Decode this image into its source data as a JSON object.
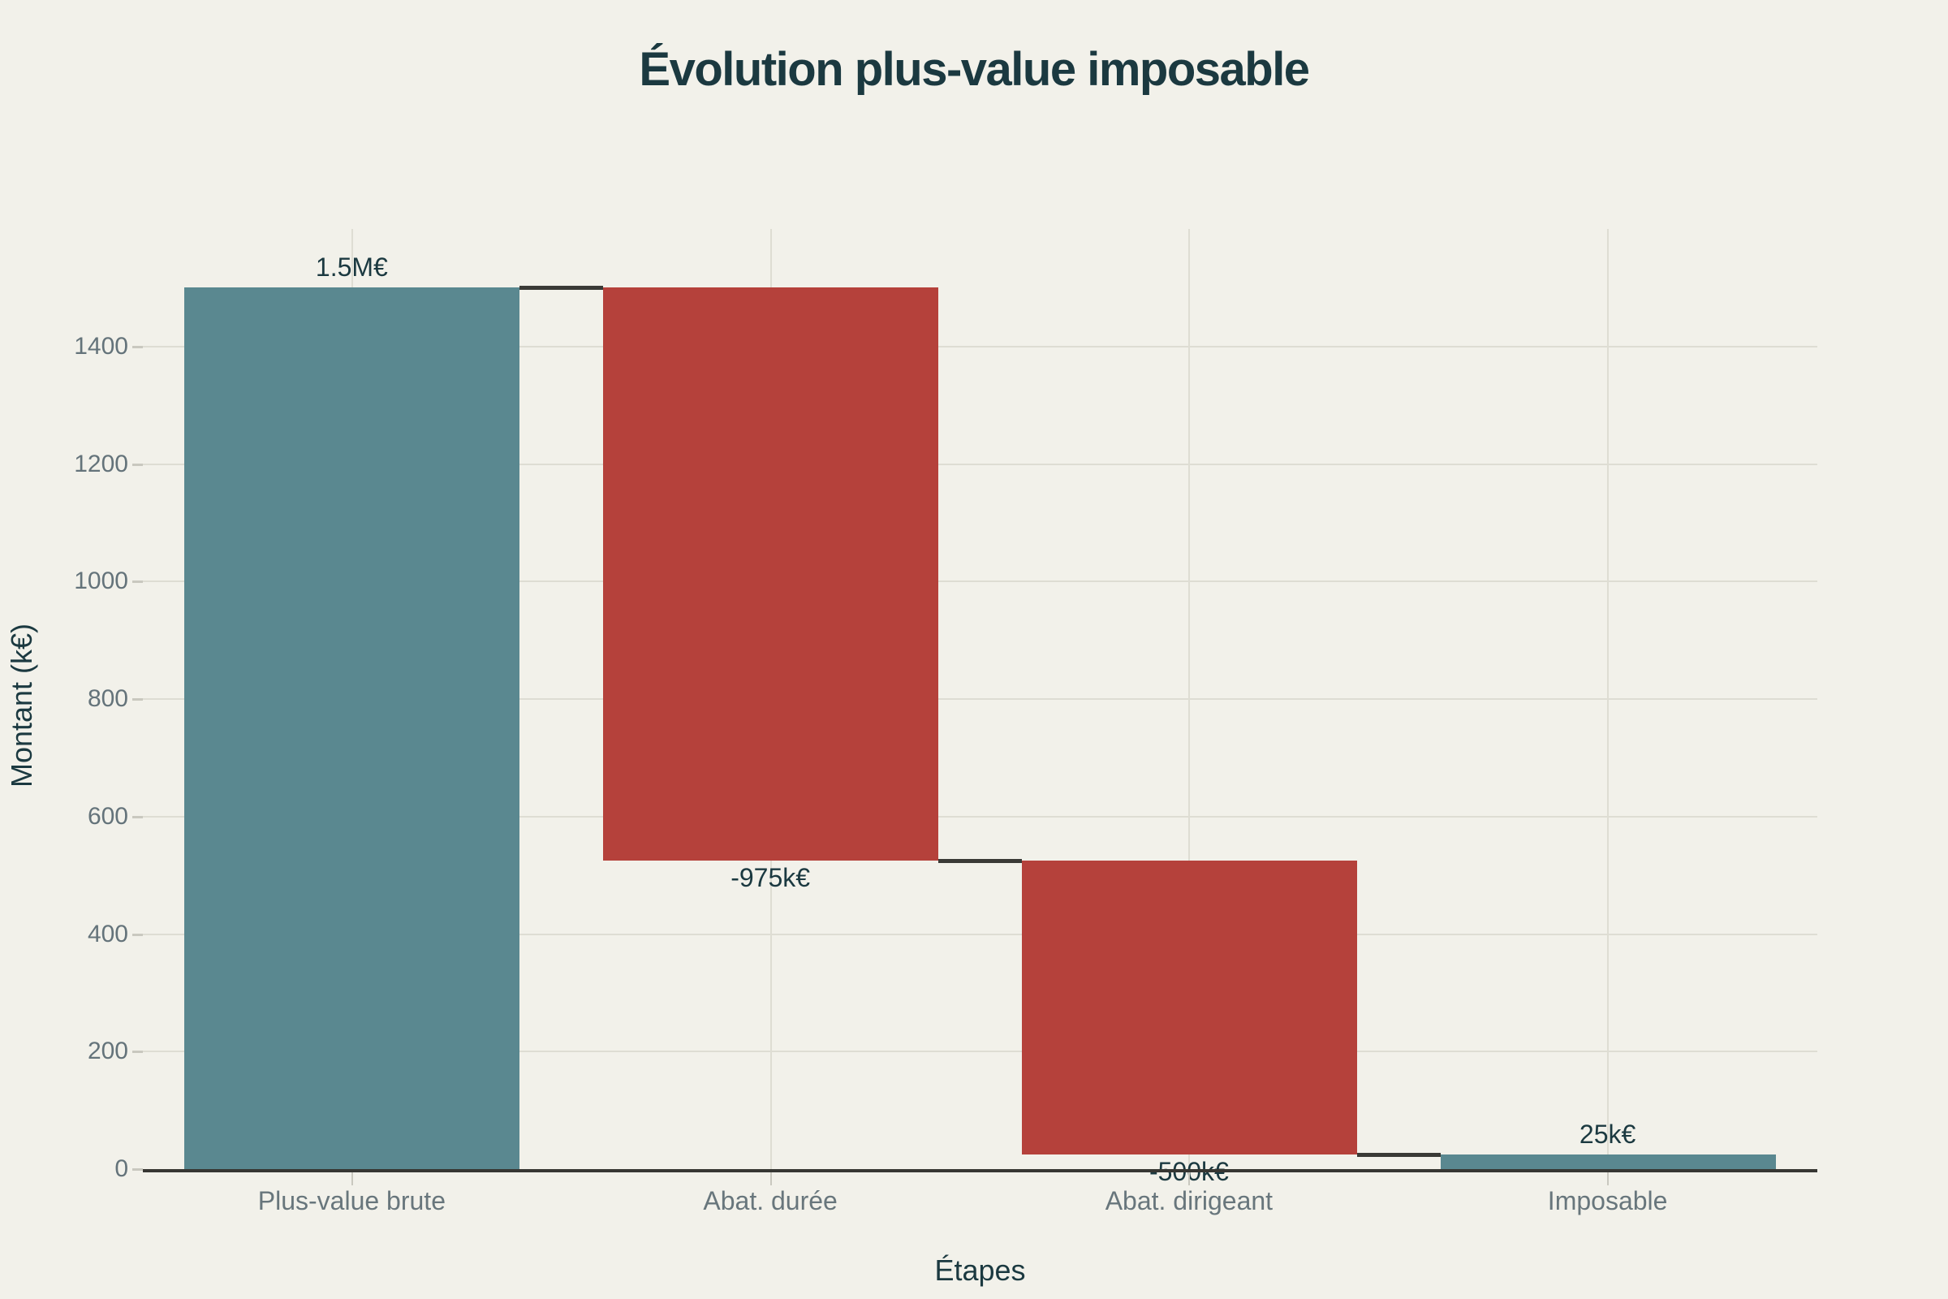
{
  "figure": {
    "title": "Évolution plus-value imposable",
    "background_color": "#F2F1EA"
  },
  "chart_data": {
    "type": "bar",
    "subtype": "waterfall",
    "title": "Évolution plus-value imposable",
    "xlabel": "Étapes",
    "ylabel": "Montant (k€)",
    "categories": [
      "Plus-value brute",
      "Abat. durée",
      "Abat. dirigeant",
      "Imposable"
    ],
    "values": [
      1500,
      -975,
      -500,
      25
    ],
    "bar_segments": [
      {
        "from": 0,
        "to": 1500
      },
      {
        "from": 1500,
        "to": 525
      },
      {
        "from": 525,
        "to": 25
      },
      {
        "from": 0,
        "to": 25
      }
    ],
    "running_totals": [
      1500,
      525,
      25,
      25
    ],
    "value_labels": [
      "1.5M€",
      "-975k€",
      "-500k€",
      "25k€"
    ],
    "value_label_positions": [
      "above",
      "below",
      "below",
      "above"
    ],
    "bar_kinds": [
      "total",
      "decrease",
      "decrease",
      "total"
    ],
    "ylim": [
      0,
      1600
    ],
    "yticks": [
      0,
      200,
      400,
      600,
      800,
      1000,
      1200,
      1400
    ],
    "grid": true,
    "legend": false,
    "colors": {
      "total": "#5A8890",
      "decrease": "#B5413B",
      "connector": "#3A3A36",
      "baseline": "#373733",
      "gridline": "#DEDDD3",
      "tick_label": "#64737A",
      "category_label": "#68767C",
      "value_label": "#1B3940",
      "title": "#1B3940",
      "background": "#F2F1EA"
    }
  }
}
